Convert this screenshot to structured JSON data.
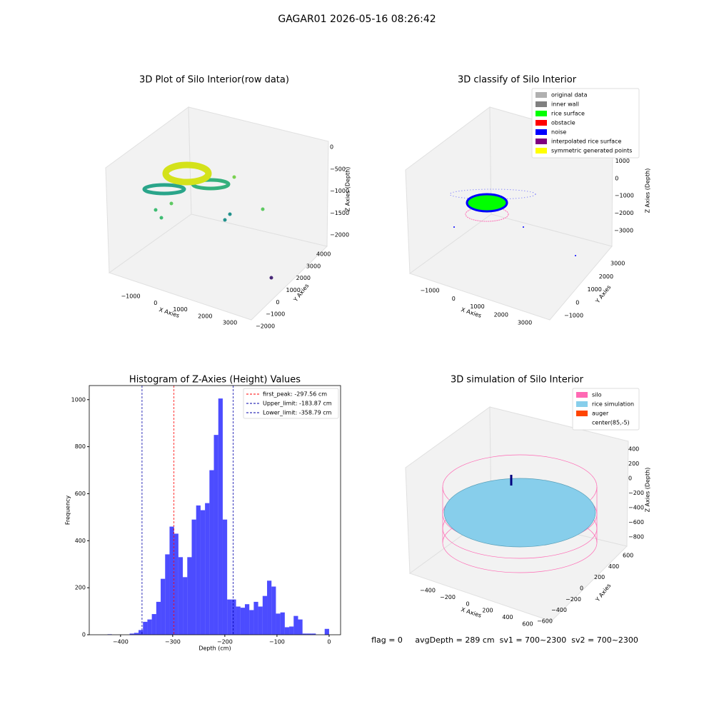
{
  "title": "GAGAR01 2026-05-16 08:26:42",
  "status": "flag = 0     avgDepth = 289 cm  sv1 = 700~2300  sv2 = 700~2300",
  "chart_data": [
    {
      "type": "scatter3d",
      "title": "3D Plot of Silo Interior(row data)",
      "xlabel": "X Axies",
      "ylabel": "Y Axies",
      "zlabel": "Z Axies (Depth)",
      "xticks": [
        {
          "value": -1000,
          "label": "−1000"
        },
        0,
        1000,
        2000,
        3000
      ],
      "yticks": [
        {
          "value": -2000,
          "label": "−2000"
        },
        {
          "value": -1000,
          "label": "−1000"
        },
        0,
        1000,
        2000,
        3000,
        4000
      ],
      "zticks": [
        0,
        {
          "value": -500,
          "label": "−500"
        },
        {
          "value": -1000,
          "label": "−1000"
        },
        {
          "value": -1500,
          "label": "−1500"
        },
        {
          "value": -2000,
          "label": "−2000"
        }
      ]
    },
    {
      "type": "scatter3d",
      "title": "3D classify of Silo Interior",
      "xlabel": "X Axies",
      "ylabel": "Y Axies",
      "zlabel": "Z Axies (Depth)",
      "xticks": [
        {
          "value": -1000,
          "label": "−1000"
        },
        0,
        1000,
        2000,
        3000
      ],
      "yticks": [
        {
          "value": -1000,
          "label": "−1000"
        },
        0,
        1000,
        2000,
        3000
      ],
      "zticks": [
        2000,
        1000,
        0,
        {
          "value": -1000,
          "label": "−1000"
        },
        {
          "value": -2000,
          "label": "−2000"
        },
        {
          "value": -3000,
          "label": "−3000"
        }
      ],
      "legend": [
        {
          "name": "original data",
          "color": "#b0b0b0"
        },
        {
          "name": "inner wall",
          "color": "#808080"
        },
        {
          "name": "rice surface",
          "color": "#00ff00"
        },
        {
          "name": "obstacle",
          "color": "#ff0000"
        },
        {
          "name": "noise",
          "color": "#0000ff"
        },
        {
          "name": "interpolated rice surface",
          "color": "#800080"
        },
        {
          "name": "symmetric generated points",
          "color": "#ffff00"
        }
      ]
    },
    {
      "type": "histogram",
      "title": "Histogram of Z-Axies (Height) Values",
      "xlabel": "Depth (cm)",
      "ylabel": "Frequency",
      "color": "#0000ff",
      "bins": [
        -425,
        -416.5,
        -408,
        -399.5,
        -391,
        -382.5,
        -374,
        -365.5,
        -357,
        -348.5,
        -340,
        -331.5,
        -323,
        -314.5,
        -306,
        -297.5,
        -289,
        -280.5,
        -272,
        -263.5,
        -255,
        -246.5,
        -238,
        -229.5,
        -221,
        -212.5,
        -204,
        -195.5,
        -187,
        -178.5,
        -170,
        -161.5,
        -153,
        -144.5,
        -136,
        -127.5,
        -119,
        -110.5,
        -102,
        -93.5,
        -85,
        -76.5,
        -68,
        -59.5,
        -51,
        -42.5,
        -34,
        -25.5,
        -17,
        -8.5,
        0
      ],
      "values": [
        2,
        0,
        0,
        0,
        0,
        5,
        8,
        20,
        55,
        65,
        88,
        140,
        238,
        342,
        460,
        430,
        330,
        245,
        330,
        490,
        550,
        530,
        560,
        700,
        850,
        1005,
        490,
        150,
        150,
        120,
        115,
        130,
        105,
        140,
        120,
        165,
        230,
        205,
        90,
        95,
        32,
        35,
        80,
        65,
        5,
        5,
        5,
        0,
        0,
        25
      ],
      "vlines": [
        {
          "name": "first_peak: -297.56 cm",
          "value": -297.56,
          "color": "#ff0000"
        },
        {
          "name": "Upper_limit: -183.87 cm",
          "value": -183.87,
          "color": "#0000aa"
        },
        {
          "name": "Lower_limit: -358.79 cm",
          "value": -358.79,
          "color": "#0000aa"
        }
      ],
      "xlim": [
        -460,
        22
      ],
      "ylim": [
        0,
        1060
      ],
      "xticks": [
        {
          "value": -400,
          "label": "−400"
        },
        {
          "value": -300,
          "label": "−300"
        },
        {
          "value": -200,
          "label": "−200"
        },
        {
          "value": -100,
          "label": "−100"
        },
        0
      ],
      "yticks": [
        0,
        200,
        400,
        600,
        800,
        1000
      ]
    },
    {
      "type": "scatter3d",
      "title": "3D simulation of Silo Interior",
      "xlabel": "X Axies",
      "ylabel": "Y Axies",
      "zlabel": "Z Axies (Depth)",
      "xticks": [
        {
          "value": -400,
          "label": "−400"
        },
        {
          "value": -200,
          "label": "−200"
        },
        0,
        200,
        400,
        600
      ],
      "yticks": [
        {
          "value": -600,
          "label": "−600"
        },
        {
          "value": -400,
          "label": "−400"
        },
        {
          "value": -200,
          "label": "−200"
        },
        0,
        200,
        400,
        600
      ],
      "zticks": [
        400,
        200,
        0,
        {
          "value": -200,
          "label": "−200"
        },
        {
          "value": -400,
          "label": "−400"
        },
        {
          "value": -600,
          "label": "−600"
        },
        {
          "value": -800,
          "label": "−800"
        }
      ],
      "legend": [
        {
          "name": "silo",
          "color": "#ff69b4"
        },
        {
          "name": "rice simulation",
          "color": "#87ceeb"
        },
        {
          "name": "auger",
          "color": "#ff4500"
        },
        {
          "name": "center(85,-5)",
          "color": "#ffffff"
        }
      ]
    }
  ]
}
